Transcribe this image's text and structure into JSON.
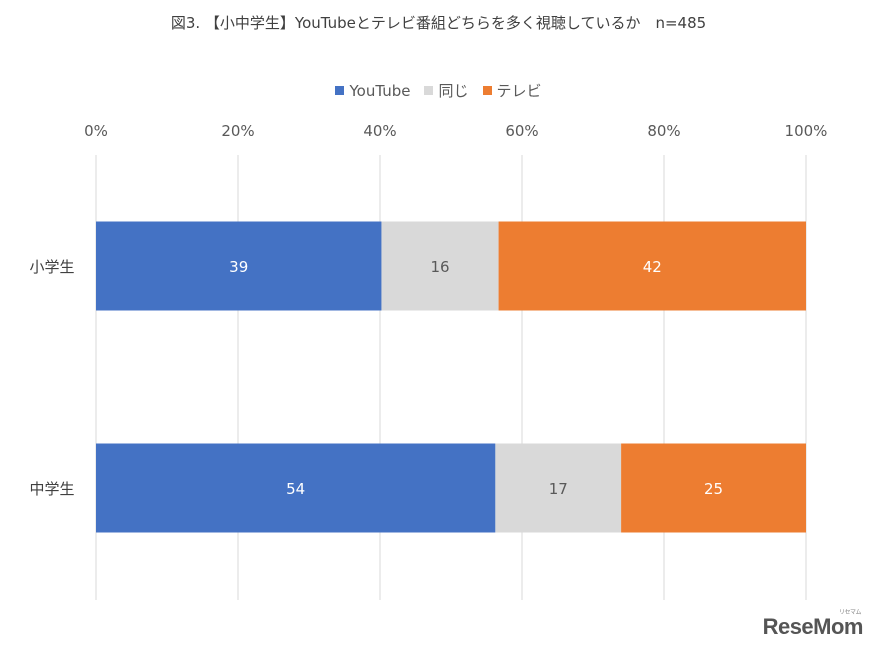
{
  "title": "図3. 【小中学生】YouTubeとテレビ番組どちらを多く視聴しているか　n=485",
  "chart_data": {
    "type": "bar",
    "orientation": "horizontal",
    "stacked": true,
    "normalized": true,
    "categories": [
      "小学生",
      "中学生"
    ],
    "series": [
      {
        "name": "YouTube",
        "color": "#4472C4",
        "values": [
          39,
          54
        ]
      },
      {
        "name": "同じ",
        "color": "#D9D9D9",
        "values": [
          16,
          17
        ]
      },
      {
        "name": "テレビ",
        "color": "#ED7D31",
        "values": [
          42,
          25
        ]
      }
    ],
    "x_ticks": [
      "0%",
      "20%",
      "40%",
      "60%",
      "80%",
      "100%"
    ],
    "xlim": [
      0,
      100
    ],
    "grid": true,
    "legend_position": "top"
  },
  "watermark": {
    "text": "ReseMom",
    "sub": "リセマム"
  }
}
